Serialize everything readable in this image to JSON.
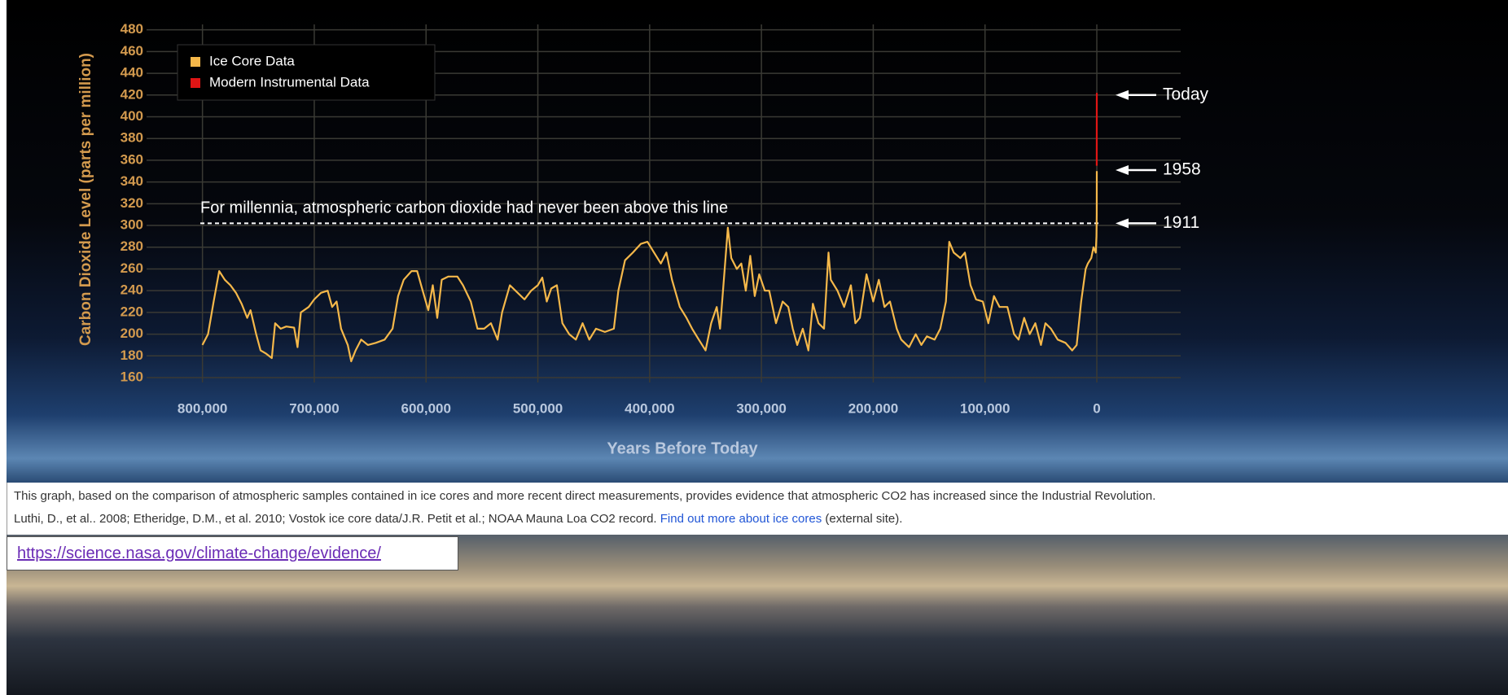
{
  "chart_data": {
    "type": "line",
    "xlabel": "Years Before Today",
    "ylabel": "Carbon Dioxide Level (parts per million)",
    "xlim": [
      850000,
      -75000
    ],
    "ylim": [
      160,
      485
    ],
    "xticks": [
      {
        "value": 800000,
        "label": "800,000"
      },
      {
        "value": 700000,
        "label": "700,000"
      },
      {
        "value": 600000,
        "label": "600,000"
      },
      {
        "value": 500000,
        "label": "500,000"
      },
      {
        "value": 400000,
        "label": "400,000"
      },
      {
        "value": 300000,
        "label": "300,000"
      },
      {
        "value": 200000,
        "label": "200,000"
      },
      {
        "value": 100000,
        "label": "100,000"
      },
      0
    ],
    "yticks": [
      160,
      180,
      200,
      220,
      240,
      260,
      280,
      300,
      320,
      340,
      360,
      380,
      400,
      420,
      440,
      460,
      480
    ],
    "grid": true,
    "legend": "upper left",
    "series": [
      {
        "name": "Ice Core Data",
        "color": "#f5b84a",
        "x": [
          800000,
          795000,
          790000,
          785000,
          780000,
          775000,
          770000,
          765000,
          760000,
          757000,
          752000,
          748000,
          743000,
          738000,
          735000,
          730000,
          725000,
          718000,
          715000,
          712000,
          705000,
          700000,
          694000,
          688000,
          684000,
          680000,
          676000,
          670000,
          667000,
          663000,
          658000,
          652000,
          645000,
          637000,
          630000,
          625000,
          620000,
          613000,
          608000,
          603000,
          598000,
          594000,
          590000,
          586000,
          580000,
          572000,
          567000,
          560000,
          554000,
          548000,
          542000,
          536000,
          532000,
          525000,
          518000,
          512000,
          506000,
          500000,
          496000,
          492000,
          488000,
          483000,
          478000,
          472000,
          466000,
          460000,
          454000,
          448000,
          440000,
          432000,
          428000,
          422000,
          415000,
          408000,
          402000,
          396000,
          390000,
          385000,
          380000,
          373000,
          367000,
          362000,
          356000,
          350000,
          345000,
          340000,
          337000,
          333000,
          330000,
          327000,
          322000,
          318000,
          314000,
          310000,
          306000,
          302000,
          297000,
          293000,
          287000,
          281000,
          276000,
          272000,
          268000,
          263000,
          258000,
          254000,
          249000,
          244000,
          240000,
          238000,
          232000,
          226000,
          220000,
          216000,
          212000,
          206000,
          200000,
          195000,
          190000,
          185000,
          179000,
          175000,
          168000,
          162000,
          157000,
          152000,
          145000,
          140000,
          135000,
          132000,
          128000,
          122000,
          118000,
          113000,
          108000,
          102000,
          97000,
          92000,
          87000,
          80000,
          74000,
          70000,
          65000,
          60000,
          55000,
          50000,
          46000,
          41000,
          35000,
          28000,
          22000,
          18000,
          14000,
          10000,
          8000,
          5000,
          3000,
          1000,
          300,
          100,
          50
        ],
        "values": [
          190,
          200,
          230,
          258,
          250,
          245,
          238,
          228,
          215,
          222,
          200,
          185,
          182,
          178,
          210,
          205,
          207,
          206,
          188,
          220,
          225,
          232,
          238,
          240,
          225,
          230,
          205,
          190,
          175,
          185,
          195,
          190,
          192,
          195,
          205,
          235,
          250,
          258,
          258,
          240,
          222,
          245,
          215,
          250,
          253,
          253,
          245,
          230,
          205,
          205,
          210,
          195,
          220,
          245,
          238,
          232,
          240,
          245,
          252,
          230,
          242,
          245,
          210,
          200,
          195,
          210,
          195,
          205,
          202,
          205,
          240,
          268,
          275,
          283,
          285,
          275,
          265,
          275,
          250,
          225,
          215,
          205,
          195,
          185,
          210,
          225,
          205,
          258,
          298,
          270,
          260,
          265,
          240,
          272,
          235,
          255,
          240,
          240,
          210,
          230,
          225,
          205,
          190,
          205,
          185,
          228,
          210,
          205,
          275,
          250,
          240,
          225,
          245,
          210,
          215,
          255,
          230,
          250,
          225,
          230,
          205,
          195,
          188,
          200,
          190,
          198,
          195,
          205,
          230,
          285,
          275,
          270,
          275,
          245,
          232,
          230,
          210,
          235,
          225,
          225,
          200,
          195,
          215,
          200,
          210,
          190,
          210,
          205,
          195,
          192,
          185,
          190,
          230,
          260,
          265,
          270,
          280,
          275,
          290,
          310,
          350
        ]
      },
      {
        "name": "Modern Instrumental Data",
        "color": "#e01515",
        "x": [
          60,
          0
        ],
        "values": [
          355,
          422
        ]
      }
    ],
    "annotations": [
      {
        "text": "Today",
        "y": 420
      },
      {
        "text": "1958",
        "y": 351
      },
      {
        "text": "1911",
        "y": 302
      }
    ],
    "threshold": {
      "text": "For millennia, atmospheric carbon dioxide had never been above this line",
      "y": 302
    }
  },
  "caption": {
    "line1": "This graph, based on the comparison of atmospheric samples contained in ice cores and more recent direct measurements, provides evidence that atmospheric CO2 has increased since the Industrial Revolution.",
    "line2": "Luthi, D., et al.. 2008; Etheridge, D.M., et al. 2010; Vostok ice core data/J.R. Petit et al.; NOAA Mauna Loa CO2 record.",
    "link": "Find out more about ice cores",
    "suffix": "(external site)."
  },
  "source_url": "https://science.nasa.gov/climate-change/evidence/"
}
